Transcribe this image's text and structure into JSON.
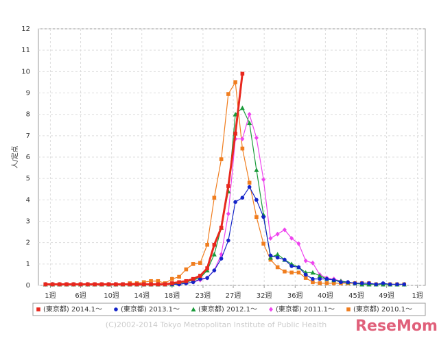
{
  "chart_data": {
    "type": "line",
    "y_label": "人/定点",
    "footer": "(C)2002-2014 Tokyo Metropolitan Institute of Public Health",
    "watermark": "ReseMom",
    "x": [
      1,
      2,
      3,
      4,
      5,
      6,
      7,
      8,
      9,
      10,
      11,
      12,
      13,
      14,
      15,
      16,
      17,
      18,
      19,
      20,
      21,
      22,
      23,
      24,
      25,
      26,
      27,
      28,
      29,
      30,
      31,
      32,
      33,
      34,
      35,
      36,
      37,
      38,
      39,
      40,
      41,
      42,
      43,
      44,
      45,
      46,
      47,
      48,
      49,
      50,
      51,
      52
    ],
    "xlim": [
      0,
      55
    ],
    "xticks": [
      {
        "value": 1.7,
        "label": "1週"
      },
      {
        "value": 6.0,
        "label": "6週"
      },
      {
        "value": 10.4,
        "label": "10週"
      },
      {
        "value": 14.7,
        "label": "14週"
      },
      {
        "value": 19.0,
        "label": "18週"
      },
      {
        "value": 23.4,
        "label": "23週"
      },
      {
        "value": 27.7,
        "label": "27週"
      },
      {
        "value": 32.1,
        "label": "32週"
      },
      {
        "value": 36.5,
        "label": "36週"
      },
      {
        "value": 40.8,
        "label": "40週"
      },
      {
        "value": 45.2,
        "label": "45週"
      },
      {
        "value": 49.5,
        "label": "49週"
      },
      {
        "value": 53.9,
        "label": "1週"
      }
    ],
    "ylim": [
      0,
      12
    ],
    "yticks": [
      0,
      1,
      2,
      3,
      4,
      5,
      6,
      7,
      8,
      9,
      10,
      11,
      12
    ],
    "grid": true,
    "legend": "bottom",
    "series": [
      {
        "name": "(東京都) 2014.1〜",
        "color": "#e8281e",
        "marker": "square",
        "values": [
          0.05,
          0.05,
          0.05,
          0.05,
          0.05,
          0.05,
          0.05,
          0.05,
          0.05,
          0.05,
          0.05,
          0.05,
          0.05,
          0.05,
          0.05,
          0.05,
          0.05,
          0.05,
          0.1,
          0.15,
          0.2,
          0.3,
          0.45,
          0.8,
          1.9,
          2.7,
          4.65,
          7.1,
          9.9,
          null,
          null,
          null,
          null,
          null,
          null,
          null,
          null,
          null,
          null,
          null,
          null,
          null,
          null,
          null,
          null,
          null,
          null,
          null,
          null,
          null,
          null,
          null
        ]
      },
      {
        "name": "(東京都) 2013.1〜",
        "color": "#1424c8",
        "marker": "circle",
        "values": [
          0.05,
          0.05,
          0.05,
          0.05,
          0.05,
          0.05,
          0.05,
          0.05,
          0.05,
          0.05,
          0.05,
          0.05,
          0.05,
          0.05,
          0.05,
          0.05,
          0.05,
          0.05,
          0.05,
          0.05,
          0.1,
          0.15,
          0.3,
          0.35,
          0.7,
          1.25,
          2.1,
          3.9,
          4.1,
          4.6,
          4.0,
          3.2,
          1.4,
          1.3,
          1.2,
          0.9,
          0.85,
          0.5,
          0.3,
          0.3,
          0.3,
          0.25,
          0.15,
          0.15,
          0.1,
          0.1,
          0.1,
          0.05,
          0.1,
          0.05,
          0.05,
          0.05
        ]
      },
      {
        "name": "(東京都) 2012.1〜",
        "color": "#1a9a3a",
        "marker": "triangle",
        "values": [
          0.05,
          0.05,
          0.05,
          0.05,
          0.05,
          0.05,
          0.05,
          0.05,
          0.05,
          0.05,
          0.05,
          0.05,
          0.05,
          0.05,
          0.05,
          0.05,
          0.05,
          0.05,
          0.05,
          0.1,
          0.15,
          0.25,
          0.35,
          0.7,
          1.45,
          2.7,
          4.4,
          8.0,
          8.3,
          7.6,
          5.4,
          3.3,
          1.3,
          1.45,
          1.2,
          1.0,
          0.85,
          0.6,
          0.6,
          0.45,
          0.3,
          0.25,
          0.2,
          0.15,
          0.1,
          0.05,
          0.05,
          0.05,
          0.05,
          0.05,
          0.05,
          0.05
        ]
      },
      {
        "name": "(東京都) 2011.1〜",
        "color": "#ee44ee",
        "marker": "diamond",
        "values": [
          0.05,
          0.05,
          0.05,
          0.05,
          0.05,
          0.05,
          0.05,
          0.05,
          0.05,
          0.05,
          0.05,
          0.05,
          0.05,
          0.05,
          0.05,
          0.05,
          0.05,
          0.05,
          0.05,
          0.05,
          0.1,
          0.15,
          0.25,
          0.35,
          0.7,
          1.45,
          3.35,
          6.85,
          6.85,
          8.0,
          6.9,
          4.95,
          2.2,
          2.4,
          2.6,
          2.2,
          1.95,
          1.15,
          1.05,
          0.5,
          0.35,
          0.3,
          0.2,
          0.15,
          0.1,
          0.1,
          0.1,
          0.05,
          0.05,
          0.05,
          0.05,
          0.05
        ]
      },
      {
        "name": "(東京都) 2010.1〜",
        "color": "#f07d1e",
        "marker": "square",
        "values": [
          0.05,
          0.05,
          0.05,
          0.05,
          0.05,
          0.05,
          0.05,
          0.05,
          0.05,
          0.05,
          0.05,
          0.05,
          0.1,
          0.1,
          0.15,
          0.2,
          0.2,
          0.1,
          0.3,
          0.4,
          0.75,
          1.0,
          1.05,
          1.9,
          4.1,
          5.9,
          8.95,
          9.5,
          6.4,
          4.8,
          3.2,
          1.95,
          1.2,
          0.85,
          0.65,
          0.6,
          0.6,
          0.35,
          0.15,
          0.1,
          0.1,
          0.1,
          0.1,
          0.1,
          0.1,
          0.1,
          0.1,
          0.05,
          0.05,
          0.05,
          0.05,
          0.05
        ]
      }
    ]
  }
}
